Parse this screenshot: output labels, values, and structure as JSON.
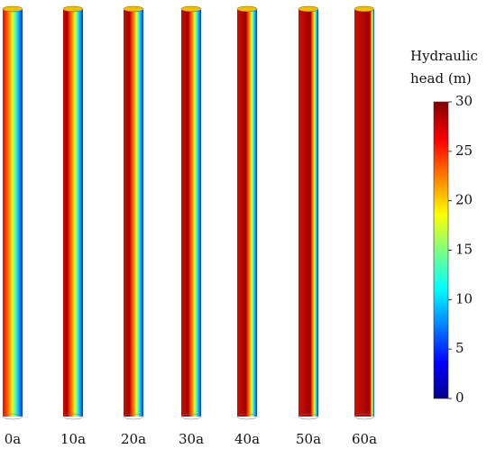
{
  "panels": [
    {
      "label": "0a"
    },
    {
      "label": "10a"
    },
    {
      "label": "20a"
    },
    {
      "label": "30a"
    },
    {
      "label": "40a"
    },
    {
      "label": "50a"
    },
    {
      "label": "60a"
    }
  ],
  "colorbar": {
    "title": [
      "Hydraulic",
      "head (m)"
    ],
    "lim": [
      0,
      30
    ],
    "ticks": [
      0,
      5,
      10,
      15,
      20,
      25,
      30
    ]
  }
}
